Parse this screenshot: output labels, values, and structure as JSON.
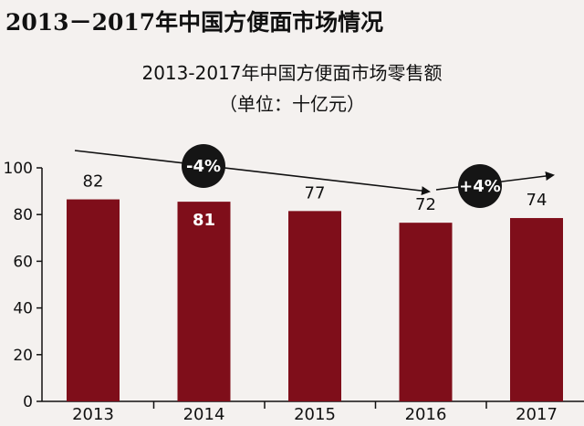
{
  "header": {
    "title": "2013－2017年中国方便面市场情况"
  },
  "chart_data": {
    "type": "bar",
    "title": "2013-2017年中国方便面市场零售额",
    "subtitle": "（单位：十亿元）",
    "categories": [
      "2013",
      "2014",
      "2015",
      "2016",
      "2017"
    ],
    "values": [
      82,
      81,
      77,
      72,
      74
    ],
    "data_labels": [
      "82",
      "81",
      "77",
      "72",
      "74"
    ],
    "ylim": [
      0,
      100
    ],
    "yticks": [
      "0",
      "20",
      "40",
      "60",
      "80",
      "100"
    ],
    "xlabel": "",
    "ylabel": "",
    "grid": false,
    "annotations": [
      {
        "label": "-4%",
        "from": "2013",
        "to": "2016",
        "direction": "down"
      },
      {
        "label": "+4%",
        "from": "2016",
        "to": "2017",
        "direction": "up"
      }
    ],
    "colors": {
      "bar": "#7f0e1a",
      "badge": "#151515",
      "badge_text": "#ffffff",
      "background": "#f4f1ef"
    }
  }
}
